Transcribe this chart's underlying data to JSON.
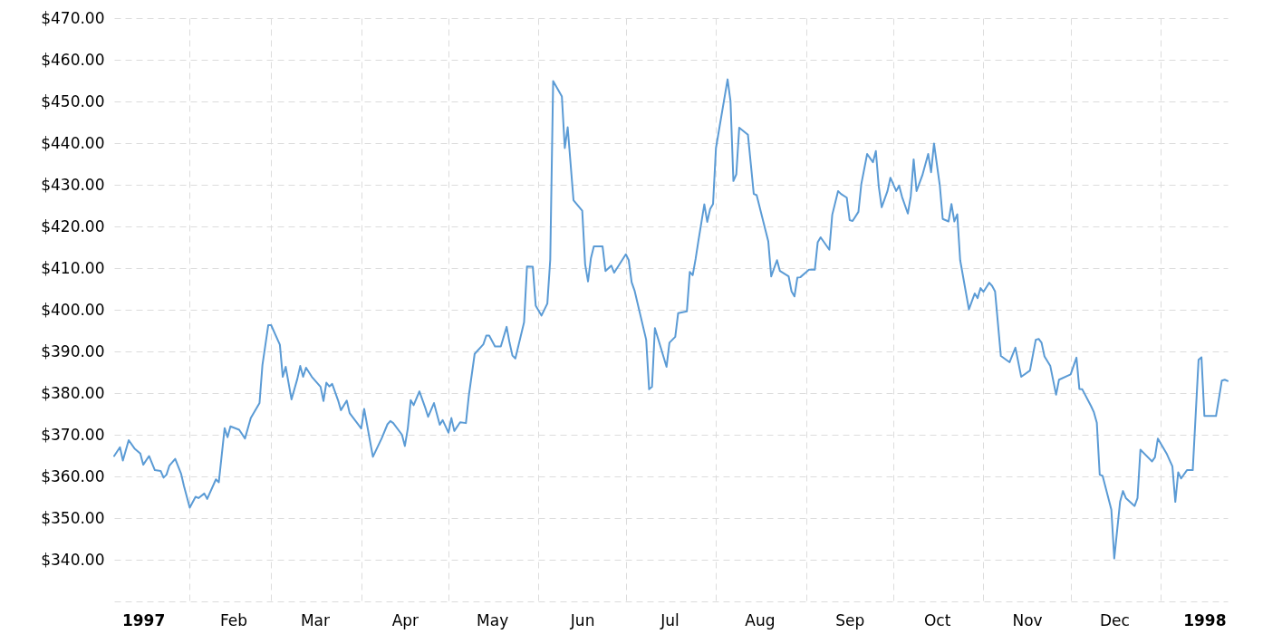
{
  "chart_data": {
    "type": "line",
    "x": [
      "1997-01-06",
      "1997-01-08",
      "1997-01-09",
      "1997-01-11",
      "1997-01-13",
      "1997-01-15",
      "1997-01-16",
      "1997-01-18",
      "1997-01-20",
      "1997-01-22",
      "1997-01-23",
      "1997-01-24",
      "1997-01-25",
      "1997-01-27",
      "1997-01-29",
      "1997-01-30",
      "1997-02-01",
      "1997-02-03",
      "1997-02-04",
      "1997-02-06",
      "1997-02-07",
      "1997-02-10",
      "1997-02-11",
      "1997-02-13",
      "1997-02-14",
      "1997-02-15",
      "1997-02-18",
      "1997-02-20",
      "1997-02-22",
      "1997-02-25",
      "1997-02-26",
      "1997-02-28",
      "1997-03-01",
      "1997-03-04",
      "1997-03-05",
      "1997-03-06",
      "1997-03-08",
      "1997-03-10",
      "1997-03-11",
      "1997-03-12",
      "1997-03-13",
      "1997-03-15",
      "1997-03-18",
      "1997-03-19",
      "1997-03-20",
      "1997-03-21",
      "1997-03-22",
      "1997-03-24",
      "1997-03-25",
      "1997-03-27",
      "1997-03-28",
      "1997-04-01",
      "1997-04-02",
      "1997-04-05",
      "1997-04-08",
      "1997-04-10",
      "1997-04-11",
      "1997-04-12",
      "1997-04-15",
      "1997-04-16",
      "1997-04-17",
      "1997-04-18",
      "1997-04-19",
      "1997-04-21",
      "1997-04-23",
      "1997-04-24",
      "1997-04-26",
      "1997-04-28",
      "1997-04-29",
      "1997-05-01",
      "1997-05-02",
      "1997-05-03",
      "1997-05-05",
      "1997-05-07",
      "1997-05-08",
      "1997-05-10",
      "1997-05-13",
      "1997-05-14",
      "1997-05-15",
      "1997-05-17",
      "1997-05-19",
      "1997-05-21",
      "1997-05-22",
      "1997-05-23",
      "1997-05-24",
      "1997-05-27",
      "1997-05-28",
      "1997-05-30",
      "1997-05-31",
      "1997-06-02",
      "1997-06-04",
      "1997-06-05",
      "1997-06-06",
      "1997-06-09",
      "1997-06-10",
      "1997-06-11",
      "1997-06-13",
      "1997-06-16",
      "1997-06-17",
      "1997-06-18",
      "1997-06-19",
      "1997-06-20",
      "1997-06-23",
      "1997-06-24",
      "1997-06-26",
      "1997-06-27",
      "1997-07-01",
      "1997-07-02",
      "1997-07-03",
      "1997-07-04",
      "1997-07-08",
      "1997-07-09",
      "1997-07-10",
      "1997-07-11",
      "1997-07-15",
      "1997-07-16",
      "1997-07-18",
      "1997-07-19",
      "1997-07-22",
      "1997-07-23",
      "1997-07-24",
      "1997-07-25",
      "1997-07-26",
      "1997-07-28",
      "1997-07-29",
      "1997-07-30",
      "1997-07-31",
      "1997-08-01",
      "1997-08-05",
      "1997-08-06",
      "1997-08-07",
      "1997-08-08",
      "1997-08-09",
      "1997-08-12",
      "1997-08-13",
      "1997-08-14",
      "1997-08-15",
      "1997-08-19",
      "1997-08-20",
      "1997-08-22",
      "1997-08-23",
      "1997-08-26",
      "1997-08-27",
      "1997-08-28",
      "1997-08-29",
      "1997-08-30",
      "1997-09-02",
      "1997-09-04",
      "1997-09-05",
      "1997-09-06",
      "1997-09-09",
      "1997-09-10",
      "1997-09-12",
      "1997-09-13",
      "1997-09-15",
      "1997-09-16",
      "1997-09-17",
      "1997-09-19",
      "1997-09-20",
      "1997-09-22",
      "1997-09-24",
      "1997-09-25",
      "1997-09-26",
      "1997-09-27",
      "1997-09-29",
      "1997-09-30",
      "1997-10-02",
      "1997-10-03",
      "1997-10-04",
      "1997-10-06",
      "1997-10-07",
      "1997-10-08",
      "1997-10-09",
      "1997-10-11",
      "1997-10-13",
      "1997-10-14",
      "1997-10-15",
      "1997-10-17",
      "1997-10-18",
      "1997-10-20",
      "1997-10-21",
      "1997-10-22",
      "1997-10-23",
      "1997-10-24",
      "1997-10-27",
      "1997-10-29",
      "1997-10-30",
      "1997-10-31",
      "1997-11-01",
      "1997-11-03",
      "1997-11-04",
      "1997-11-05",
      "1997-11-07",
      "1997-11-10",
      "1997-11-12",
      "1997-11-14",
      "1997-11-17",
      "1997-11-19",
      "1997-11-20",
      "1997-11-21",
      "1997-11-22",
      "1997-11-24",
      "1997-11-26",
      "1997-11-27",
      "1997-12-01",
      "1997-12-03",
      "1997-12-04",
      "1997-12-05",
      "1997-12-08",
      "1997-12-09",
      "1997-12-10",
      "1997-12-11",
      "1997-12-12",
      "1997-12-15",
      "1997-12-16",
      "1997-12-18",
      "1997-12-19",
      "1997-12-20",
      "1997-12-23",
      "1997-12-24",
      "1997-12-25",
      "1997-12-29",
      "1997-12-30",
      "1997-12-31",
      "1998-01-03",
      "1998-01-05",
      "1998-01-06",
      "1998-01-07",
      "1998-01-08",
      "1998-01-10",
      "1998-01-12",
      "1998-01-14",
      "1998-01-15",
      "1998-01-16",
      "1998-01-20",
      "1998-01-21",
      "1998-01-22",
      "1998-01-23",
      "1998-01-24"
    ],
    "series": [
      {
        "color": "#5b9bd5",
        "values": [
          364.9,
          367.0,
          363.8,
          368.7,
          366.7,
          365.5,
          362.8,
          364.9,
          361.5,
          361.3,
          359.7,
          360.4,
          362.6,
          364.2,
          360.7,
          357.7,
          352.5,
          355.1,
          354.8,
          355.9,
          354.6,
          359.3,
          358.6,
          371.6,
          369.4,
          372.0,
          371.2,
          369.1,
          374.0,
          377.6,
          386.7,
          396.3,
          396.3,
          391.6,
          383.9,
          386.3,
          378.5,
          383.4,
          386.5,
          383.9,
          386.1,
          383.9,
          381.5,
          378.1,
          382.5,
          381.6,
          382.2,
          378.3,
          375.9,
          378.2,
          375.2,
          371.5,
          376.2,
          364.7,
          369.1,
          372.5,
          373.3,
          372.8,
          370.0,
          367.3,
          371.5,
          378.3,
          377.1,
          380.4,
          376.5,
          374.3,
          377.6,
          372.4,
          373.5,
          370.5,
          374.0,
          370.9,
          373.0,
          372.8,
          379.4,
          389.4,
          391.7,
          393.8,
          393.8,
          391.2,
          391.2,
          395.9,
          392.1,
          389.0,
          388.3,
          397.0,
          410.4,
          410.3,
          401.0,
          398.6,
          401.5,
          412.0,
          454.9,
          451.2,
          438.8,
          443.8,
          426.3,
          423.8,
          410.9,
          406.8,
          412.4,
          415.2,
          415.2,
          409.3,
          410.6,
          408.9,
          413.3,
          411.9,
          406.6,
          404.6,
          392.8,
          380.9,
          381.5,
          395.6,
          386.3,
          392.1,
          393.5,
          399.2,
          399.6,
          409.1,
          408.3,
          412.2,
          416.7,
          425.3,
          421.1,
          424.2,
          425.4,
          438.8,
          455.3,
          450.1,
          430.9,
          432.5,
          443.7,
          442.0,
          434.9,
          427.8,
          427.5,
          416.4,
          408.0,
          411.9,
          409.3,
          408.0,
          404.4,
          403.2,
          407.7,
          407.8,
          409.6,
          409.6,
          416.2,
          417.4,
          414.4,
          422.8,
          428.5,
          427.8,
          426.9,
          421.5,
          421.3,
          423.5,
          430.2,
          437.4,
          435.4,
          438.1,
          429.6,
          424.6,
          428.5,
          431.7,
          428.5,
          429.8,
          427.1,
          423.1,
          427.2,
          436.1,
          428.5,
          432.3,
          437.4,
          433.0,
          439.9,
          429.8,
          421.8,
          421.2,
          425.4,
          421.2,
          422.9,
          411.9,
          400.1,
          403.9,
          402.8,
          405.2,
          404.3,
          406.5,
          405.7,
          404.4,
          388.9,
          387.4,
          390.9,
          383.9,
          385.4,
          392.8,
          393.0,
          392.1,
          388.8,
          386.5,
          379.6,
          383.2,
          384.5,
          388.5,
          381.0,
          380.9,
          376.9,
          375.4,
          372.9,
          360.4,
          360.1,
          352.0,
          340.3,
          353.9,
          356.5,
          354.8,
          352.9,
          354.8,
          366.4,
          363.6,
          364.6,
          369.1,
          365.5,
          362.4,
          353.9,
          361.0,
          359.5,
          361.5,
          361.5,
          388.0,
          388.6,
          374.5,
          374.5,
          378.7,
          383.0,
          383.2,
          382.9
        ]
      }
    ],
    "xlim": [
      "1997-01-06",
      "1998-01-24"
    ],
    "xticks": [
      {
        "value": "1997-01-16",
        "label": "1997"
      },
      {
        "value": "1997-02-01",
        "label": null
      },
      {
        "value": "1997-02-16",
        "label": "Feb"
      },
      {
        "value": "1997-03-01",
        "label": null
      },
      {
        "value": "1997-03-16",
        "label": "Mar"
      },
      {
        "value": "1997-04-01",
        "label": null
      },
      {
        "value": "1997-04-16",
        "label": "Apr"
      },
      {
        "value": "1997-05-01",
        "label": null
      },
      {
        "value": "1997-05-16",
        "label": "May"
      },
      {
        "value": "1997-06-01",
        "label": null
      },
      {
        "value": "1997-06-16",
        "label": "Jun"
      },
      {
        "value": "1997-07-01",
        "label": null
      },
      {
        "value": "1997-07-16",
        "label": "Jul"
      },
      {
        "value": "1997-08-01",
        "label": null
      },
      {
        "value": "1997-08-16",
        "label": "Aug"
      },
      {
        "value": "1997-09-01",
        "label": null
      },
      {
        "value": "1997-09-16",
        "label": "Sep"
      },
      {
        "value": "1997-10-01",
        "label": null
      },
      {
        "value": "1997-10-16",
        "label": "Oct"
      },
      {
        "value": "1997-11-01",
        "label": null
      },
      {
        "value": "1997-11-16",
        "label": "Nov"
      },
      {
        "value": "1997-12-01",
        "label": null
      },
      {
        "value": "1997-12-16",
        "label": "Dec"
      },
      {
        "value": "1998-01-01",
        "label": null
      },
      {
        "value": "1998-01-16",
        "label": "1998"
      }
    ],
    "ylim": [
      330,
      470
    ],
    "yticks": [
      {
        "value": 330,
        "label": null
      },
      {
        "value": 340,
        "label": "$340.00"
      },
      {
        "value": 350,
        "label": "$350.00"
      },
      {
        "value": 360,
        "label": "$360.00"
      },
      {
        "value": 370,
        "label": "$370.00"
      },
      {
        "value": 380,
        "label": "$380.00"
      },
      {
        "value": 390,
        "label": "$390.00"
      },
      {
        "value": 400,
        "label": "$400.00"
      },
      {
        "value": 410,
        "label": "$410.00"
      },
      {
        "value": 420,
        "label": "$420.00"
      },
      {
        "value": 430,
        "label": "$430.00"
      },
      {
        "value": 440,
        "label": "$440.00"
      },
      {
        "value": 450,
        "label": "$450.00"
      },
      {
        "value": 460,
        "label": "$460.00"
      },
      {
        "value": 470,
        "label": "$470.00"
      }
    ],
    "grid": true
  }
}
